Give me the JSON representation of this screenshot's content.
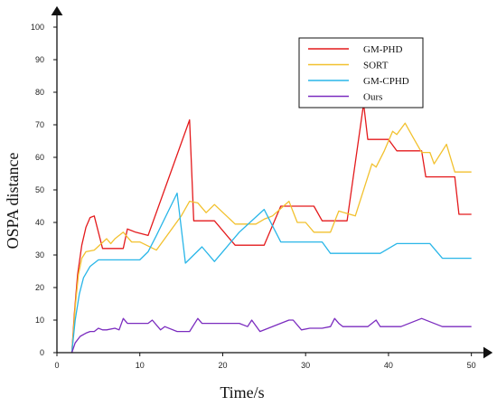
{
  "chart_data": {
    "type": "line",
    "xlabel": "Time/s",
    "ylabel": "OSPA distance",
    "xlim": [
      0,
      52
    ],
    "ylim": [
      0,
      105
    ],
    "x_ticks": [
      0,
      10,
      20,
      30,
      40,
      50
    ],
    "y_ticks": [
      0,
      10,
      20,
      30,
      40,
      50,
      60,
      70,
      80,
      90,
      100
    ],
    "legend_position": "top-right",
    "grid": false,
    "series": [
      {
        "name": "GM-PHD",
        "color": "#e41a1c",
        "points": [
          [
            1.8,
            0
          ],
          [
            2.1,
            12
          ],
          [
            2.5,
            24
          ],
          [
            3,
            33
          ],
          [
            3.5,
            38.5
          ],
          [
            4,
            41.5
          ],
          [
            4.5,
            42
          ],
          [
            5.5,
            32
          ],
          [
            7,
            32
          ],
          [
            8,
            32
          ],
          [
            8.5,
            38
          ],
          [
            9.5,
            37
          ],
          [
            11,
            36
          ],
          [
            16,
            71.5
          ],
          [
            16.5,
            40.5
          ],
          [
            19,
            40.5
          ],
          [
            21.5,
            33
          ],
          [
            25,
            33
          ],
          [
            27,
            45
          ],
          [
            31,
            45
          ],
          [
            32,
            40.5
          ],
          [
            35,
            40.5
          ],
          [
            37,
            76.5
          ],
          [
            37.5,
            65.5
          ],
          [
            40,
            65.5
          ],
          [
            41,
            62
          ],
          [
            44,
            62
          ],
          [
            44.5,
            54
          ],
          [
            48,
            54
          ],
          [
            48.5,
            42.5
          ],
          [
            50,
            42.5
          ]
        ]
      },
      {
        "name": "SORT",
        "color": "#f2c12e",
        "points": [
          [
            1.8,
            0
          ],
          [
            2.2,
            14
          ],
          [
            2.6,
            24
          ],
          [
            3,
            29
          ],
          [
            3.5,
            31
          ],
          [
            4.5,
            31.5
          ],
          [
            6,
            35
          ],
          [
            6.5,
            33.5
          ],
          [
            7,
            35
          ],
          [
            8,
            37
          ],
          [
            9,
            34
          ],
          [
            10,
            34
          ],
          [
            12,
            31.5
          ],
          [
            15,
            42
          ],
          [
            16,
            46.5
          ],
          [
            17,
            46
          ],
          [
            18,
            43
          ],
          [
            19,
            45.5
          ],
          [
            21.5,
            39.5
          ],
          [
            24,
            39.5
          ],
          [
            25,
            41
          ],
          [
            26,
            42
          ],
          [
            28,
            46.5
          ],
          [
            29,
            40
          ],
          [
            30,
            40
          ],
          [
            31,
            37
          ],
          [
            33,
            37
          ],
          [
            34,
            43.5
          ],
          [
            36,
            42
          ],
          [
            38,
            58
          ],
          [
            38.5,
            57
          ],
          [
            39.5,
            62
          ],
          [
            40.5,
            68
          ],
          [
            41,
            67
          ],
          [
            42,
            70.5
          ],
          [
            43,
            66
          ],
          [
            44,
            61.5
          ],
          [
            45,
            61.5
          ],
          [
            45.5,
            58
          ],
          [
            47,
            64
          ],
          [
            48,
            55.5
          ],
          [
            50,
            55.5
          ]
        ]
      },
      {
        "name": "GM-CPHD",
        "color": "#29b6e8",
        "points": [
          [
            1.8,
            0
          ],
          [
            2.2,
            10
          ],
          [
            2.7,
            18
          ],
          [
            3.2,
            23
          ],
          [
            4,
            26.5
          ],
          [
            5,
            28.5
          ],
          [
            10,
            28.5
          ],
          [
            11,
            31
          ],
          [
            12,
            36
          ],
          [
            14.5,
            49
          ],
          [
            15.5,
            27.5
          ],
          [
            17.5,
            32.5
          ],
          [
            19,
            28
          ],
          [
            20,
            31
          ],
          [
            22,
            37
          ],
          [
            25,
            44
          ],
          [
            27,
            34
          ],
          [
            32,
            34
          ],
          [
            33,
            30.5
          ],
          [
            39,
            30.5
          ],
          [
            41,
            33.5
          ],
          [
            45,
            33.5
          ],
          [
            46.5,
            29
          ],
          [
            50,
            29
          ]
        ]
      },
      {
        "name": "Ours",
        "color": "#7b2cbf",
        "points": [
          [
            1.8,
            0
          ],
          [
            2.2,
            3
          ],
          [
            2.8,
            5
          ],
          [
            3.5,
            6
          ],
          [
            4,
            6.5
          ],
          [
            4.5,
            6.5
          ],
          [
            5,
            7.5
          ],
          [
            5.5,
            7
          ],
          [
            6,
            7
          ],
          [
            7,
            7.5
          ],
          [
            7.5,
            7
          ],
          [
            8,
            10.5
          ],
          [
            8.5,
            9
          ],
          [
            11,
            9
          ],
          [
            11.5,
            10
          ],
          [
            12.5,
            7
          ],
          [
            13,
            8
          ],
          [
            14.5,
            6.5
          ],
          [
            16,
            6.5
          ],
          [
            17,
            10.5
          ],
          [
            17.5,
            9
          ],
          [
            22,
            9
          ],
          [
            23,
            8
          ],
          [
            23.5,
            10
          ],
          [
            24.5,
            6.5
          ],
          [
            26.5,
            8.5
          ],
          [
            28,
            10
          ],
          [
            28.5,
            10
          ],
          [
            29.5,
            7
          ],
          [
            30.5,
            7.5
          ],
          [
            32,
            7.5
          ],
          [
            33,
            8
          ],
          [
            33.5,
            10.5
          ],
          [
            34,
            9
          ],
          [
            34.5,
            8
          ],
          [
            37.5,
            8
          ],
          [
            38.5,
            10
          ],
          [
            39,
            8
          ],
          [
            41.5,
            8
          ],
          [
            44,
            10.5
          ],
          [
            45,
            9.5
          ],
          [
            46.5,
            8
          ],
          [
            50,
            8
          ]
        ]
      }
    ]
  }
}
